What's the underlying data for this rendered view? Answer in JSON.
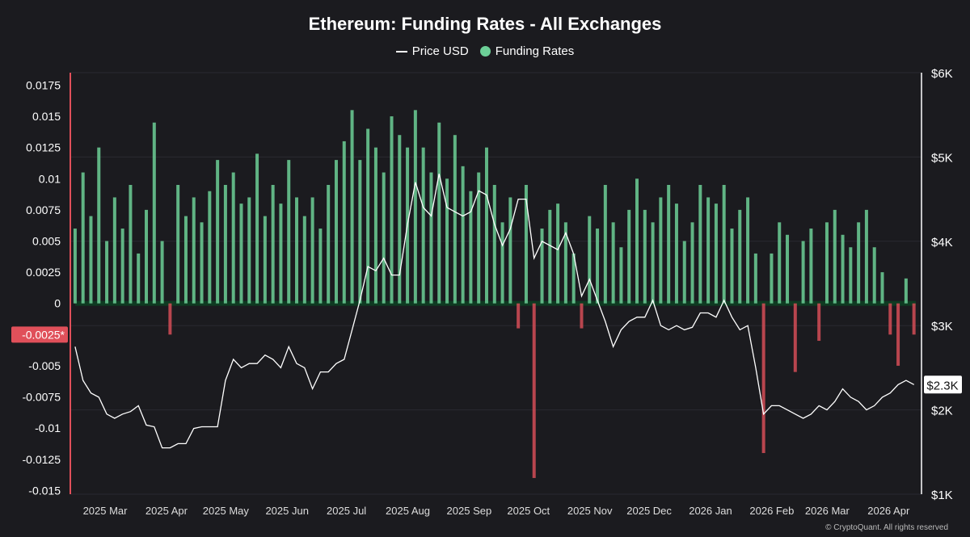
{
  "chart_data": {
    "type": "bar+line",
    "title": "Ethereum: Funding Rates - All Exchanges",
    "legend": [
      "Price USD",
      "Funding Rates"
    ],
    "legend_placement": "top-center",
    "colors": {
      "positive": "#6ccf97",
      "negative": "#e0505a",
      "price": "#ffffff",
      "background": "#1b1b1f"
    },
    "left_axis": {
      "ticks": [
        "0.0175",
        "0.015",
        "0.0125",
        "0.01",
        "0.0075",
        "0.005",
        "0.0025",
        "0",
        "-0.0025*",
        "-0.005",
        "-0.0075",
        "-0.01",
        "-0.0125",
        "-0.015"
      ],
      "range": [
        -0.0153,
        0.0185
      ],
      "highlight": "-0.0025*"
    },
    "right_axis": {
      "ticks": [
        "$6K",
        "$5K",
        "$4K",
        "$3K",
        "$2K",
        "$1K"
      ],
      "range": [
        1,
        6
      ],
      "unit": "USD thousands",
      "current_label": "$2.3K"
    },
    "x_ticks": [
      "2025 Mar",
      "2025 Apr",
      "2025 May",
      "2025 Jun",
      "2025 Jul",
      "2025 Aug",
      "2025 Sep",
      "2025 Oct",
      "2025 Nov",
      "2025 Dec",
      "2026 Jan",
      "2026 Feb",
      "2026 Mar",
      "2026 Apr"
    ],
    "x_tick_dates": [
      "2025-03-01",
      "2025-04-01",
      "2025-05-01",
      "2025-06-01",
      "2025-07-01",
      "2025-08-01",
      "2025-09-01",
      "2025-10-01",
      "2025-11-01",
      "2025-12-01",
      "2026-01-01",
      "2026-02-01",
      "2026-03-01",
      "2026-04-01"
    ],
    "dates": [
      "2025-02-22",
      "2025-02-26",
      "2025-03-02",
      "2025-03-06",
      "2025-03-10",
      "2025-03-14",
      "2025-03-18",
      "2025-03-22",
      "2025-03-26",
      "2025-03-30",
      "2025-04-03",
      "2025-04-07",
      "2025-04-11",
      "2025-04-15",
      "2025-04-19",
      "2025-04-23",
      "2025-04-27",
      "2025-05-01",
      "2025-05-05",
      "2025-05-09",
      "2025-05-13",
      "2025-05-17",
      "2025-05-21",
      "2025-05-25",
      "2025-05-29",
      "2025-06-02",
      "2025-06-06",
      "2025-06-10",
      "2025-06-14",
      "2025-06-18",
      "2025-06-22",
      "2025-06-26",
      "2025-06-30",
      "2025-07-04",
      "2025-07-08",
      "2025-07-12",
      "2025-07-16",
      "2025-07-20",
      "2025-07-24",
      "2025-07-28",
      "2025-08-01",
      "2025-08-05",
      "2025-08-09",
      "2025-08-13",
      "2025-08-17",
      "2025-08-21",
      "2025-08-25",
      "2025-08-29",
      "2025-09-02",
      "2025-09-06",
      "2025-09-10",
      "2025-09-14",
      "2025-09-18",
      "2025-09-22",
      "2025-09-26",
      "2025-09-30",
      "2025-10-04",
      "2025-10-08",
      "2025-10-12",
      "2025-10-16",
      "2025-10-20",
      "2025-10-24",
      "2025-10-28",
      "2025-11-01",
      "2025-11-05",
      "2025-11-09",
      "2025-11-13",
      "2025-11-17",
      "2025-11-21",
      "2025-11-25",
      "2025-11-29",
      "2025-12-03",
      "2025-12-07",
      "2025-12-11",
      "2025-12-15",
      "2025-12-19",
      "2025-12-23",
      "2025-12-27",
      "2025-12-31",
      "2026-01-04",
      "2026-01-08",
      "2026-01-12",
      "2026-01-16",
      "2026-01-20",
      "2026-01-24",
      "2026-01-28",
      "2026-02-01",
      "2026-02-05",
      "2026-02-09",
      "2026-02-13",
      "2026-02-17",
      "2026-02-21",
      "2026-02-25",
      "2026-03-01",
      "2026-03-05",
      "2026-03-09",
      "2026-03-13",
      "2026-03-17",
      "2026-03-21",
      "2026-03-25",
      "2026-03-29",
      "2026-04-02",
      "2026-04-06",
      "2026-04-10",
      "2026-04-14",
      "2026-04-18",
      "2026-04-22"
    ],
    "series": [
      {
        "name": "Funding Rates",
        "type": "bar",
        "values": [
          0.006,
          0.0105,
          0.007,
          0.0125,
          0.005,
          0.0085,
          0.006,
          0.0095,
          0.004,
          0.0075,
          0.0145,
          0.005,
          -0.0025,
          0.0095,
          0.007,
          0.0085,
          0.0065,
          0.009,
          0.0115,
          0.0095,
          0.0105,
          0.008,
          0.0085,
          0.012,
          0.007,
          0.0095,
          0.008,
          0.0115,
          0.0085,
          0.007,
          0.0085,
          0.006,
          0.0095,
          0.0115,
          0.013,
          0.0155,
          0.0115,
          0.014,
          0.0125,
          0.0105,
          0.015,
          0.0135,
          0.0125,
          0.0155,
          0.0125,
          0.0105,
          0.0145,
          0.01,
          0.0135,
          0.011,
          0.009,
          0.0105,
          0.0125,
          0.0095,
          0.0065,
          0.0085,
          -0.002,
          0.0095,
          -0.014,
          0.006,
          0.0075,
          0.008,
          0.0065,
          0.004,
          -0.002,
          0.007,
          0.006,
          0.0095,
          0.0065,
          0.0045,
          0.0075,
          0.01,
          0.0075,
          0.0065,
          0.0085,
          0.0095,
          0.008,
          0.005,
          0.0065,
          0.0095,
          0.0085,
          0.008,
          0.0095,
          0.006,
          0.0075,
          0.0085,
          0.004,
          -0.012,
          0.004,
          0.0065,
          0.0055,
          -0.0055,
          0.005,
          0.006,
          -0.003,
          0.0065,
          0.0075,
          0.0055,
          0.0045,
          0.0065,
          0.0075,
          0.0045,
          0.0025,
          -0.0025,
          -0.005,
          0.002,
          -0.0025
        ]
      },
      {
        "name": "Price USD",
        "type": "line",
        "values": [
          2.75,
          2.35,
          2.2,
          2.15,
          1.95,
          1.9,
          1.95,
          1.98,
          2.05,
          1.82,
          1.8,
          1.55,
          1.55,
          1.6,
          1.6,
          1.78,
          1.8,
          1.8,
          1.8,
          2.35,
          2.6,
          2.5,
          2.55,
          2.55,
          2.65,
          2.6,
          2.5,
          2.75,
          2.55,
          2.5,
          2.25,
          2.45,
          2.45,
          2.55,
          2.6,
          2.95,
          3.3,
          3.7,
          3.65,
          3.8,
          3.6,
          3.6,
          4.2,
          4.7,
          4.4,
          4.3,
          4.8,
          4.4,
          4.35,
          4.3,
          4.35,
          4.6,
          4.55,
          4.2,
          3.95,
          4.15,
          4.5,
          4.5,
          3.8,
          4.0,
          3.95,
          3.9,
          4.1,
          3.85,
          3.35,
          3.55,
          3.3,
          3.05,
          2.75,
          2.95,
          3.05,
          3.1,
          3.1,
          3.3,
          3.0,
          2.95,
          3.0,
          2.95,
          2.98,
          3.15,
          3.15,
          3.1,
          3.3,
          3.1,
          2.95,
          3.0,
          2.5,
          1.95,
          2.05,
          2.05,
          2.0,
          1.95,
          1.9,
          1.95,
          2.05,
          2.0,
          2.1,
          2.25,
          2.15,
          2.1,
          2.0,
          2.05,
          2.15,
          2.2,
          2.3,
          2.35,
          2.3
        ]
      }
    ],
    "grid": true
  },
  "footer": "© CryptoQuant. All rights reserved"
}
